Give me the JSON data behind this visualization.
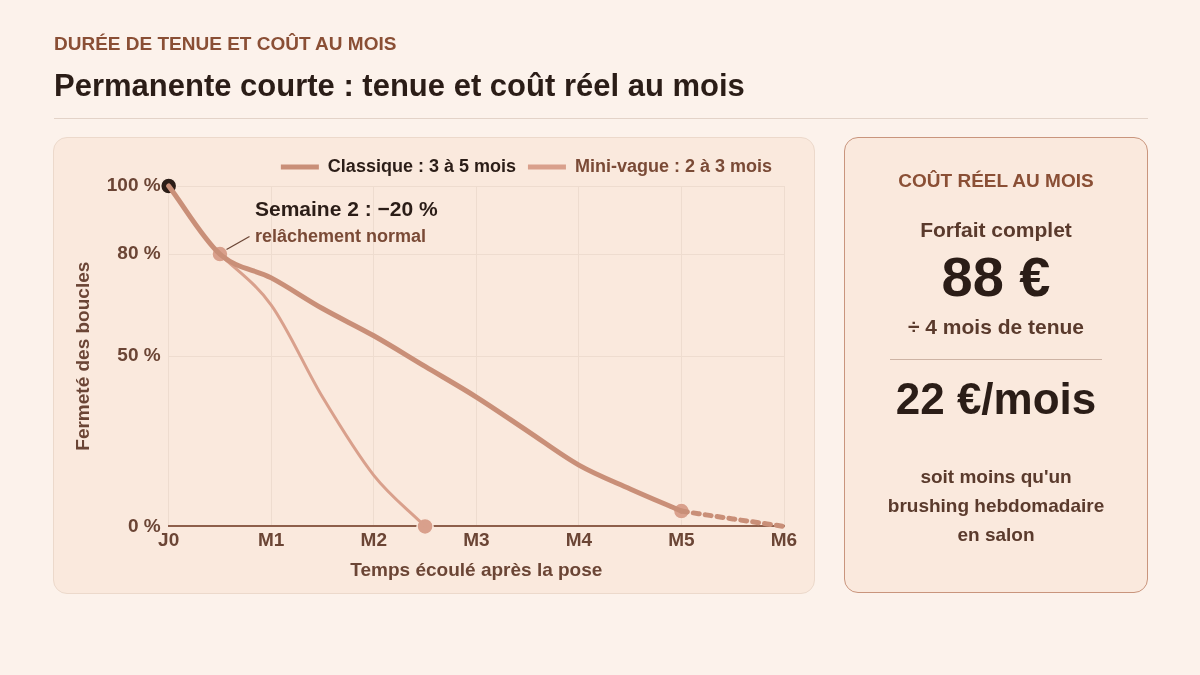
{
  "chart_data": [
    {
      "type": "line",
      "subtitle": "DURÉE DE TENUE ET COÛT AU MOIS",
      "title": "Permanente courte : tenue et coût réel au mois",
      "xlabel": "Temps écoulé après la pose",
      "ylabel": "Fermeté des boucles",
      "categories": [
        "J0",
        null,
        "M1",
        null,
        "M2",
        null,
        "M3",
        null,
        "M4",
        null,
        "M5",
        null,
        "M6"
      ],
      "ylim": [
        0,
        100
      ],
      "yticks": [
        {
          "value": 0,
          "label": "0 %"
        },
        {
          "value": 50,
          "label": "50 %"
        },
        {
          "value": 80,
          "label": "80 %"
        },
        {
          "value": 100,
          "label": "100 %"
        }
      ],
      "grid": true,
      "legend": "top right",
      "marker": "none",
      "line_style": "solid",
      "series": [
        {
          "name": "Classique : 3 à 5 mois",
          "color": "#c98f78",
          "values": [
            100,
            80,
            73,
            64,
            56,
            47,
            38,
            28,
            18,
            11,
            4.5,
            null,
            null
          ]
        },
        {
          "name": "Mini-vague : 2 à 3 mois",
          "color": "#d9a08c",
          "values": [
            null,
            80,
            65,
            38,
            15,
            0,
            null,
            null,
            null,
            null,
            null,
            null,
            null
          ]
        },
        {
          "type": "line",
          "color": "#c98f78",
          "line_style": "dashed",
          "values": [
            null,
            null,
            null,
            null,
            null,
            null,
            null,
            null,
            null,
            null,
            4.5,
            2.2,
            0
          ]
        },
        {
          "type": "scatter",
          "marker": "circle",
          "colors": [
            "#2b1d17",
            "#d9a08c",
            "#d9a08c",
            "#d9a08c",
            "#d9a08c",
            "#d9a08c",
            "#d9a08c",
            "#d9a08c",
            "#d9a08c",
            "#d9a08c",
            "#d9a08c",
            "#d9a08c",
            "#d9a08c"
          ],
          "values": [
            100,
            80,
            null,
            null,
            null,
            0,
            null,
            null,
            null,
            null,
            4.5,
            null,
            null
          ]
        }
      ],
      "annotations": [
        "Semaine 2 : −20 %",
        "relâchement normal"
      ]
    },
    {
      "type": "other",
      "title": "COÛT RÉEL AU MOIS",
      "annotations": [
        "Forfait complet",
        "88 €",
        "÷ 4 mois de tenue",
        "22 €/mois",
        "soit moins qu'un brushing hebdomadaire en salon"
      ]
    }
  ]
}
